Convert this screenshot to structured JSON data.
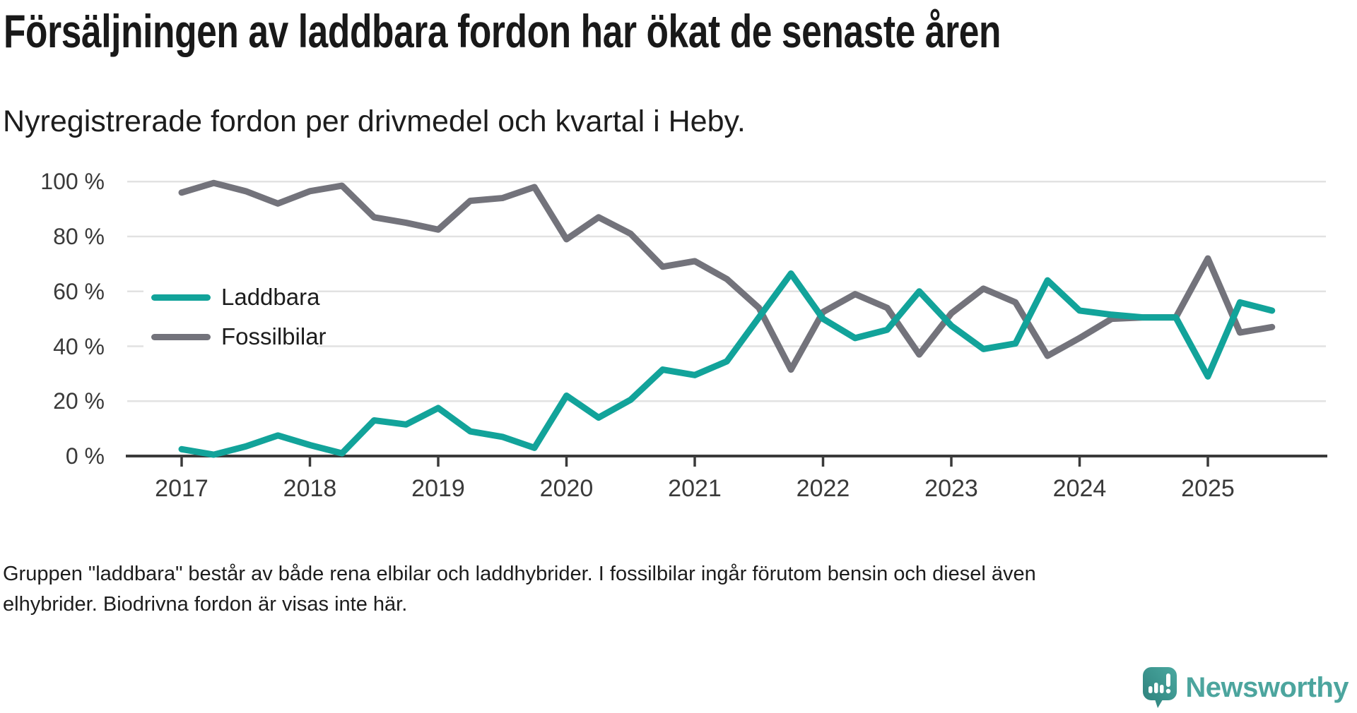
{
  "header": {
    "title": "Försäljningen av laddbara fordon har ökat de senaste åren",
    "subtitle": "Nyregistrerade fordon per drivmedel och kvartal i Heby."
  },
  "chart_data": {
    "type": "line",
    "title": "Försäljningen av laddbara fordon har ökat de senaste åren",
    "subtitle": "Nyregistrerade fordon per drivmedel och kvartal i Heby.",
    "xlabel": "",
    "ylabel": "",
    "ylim": [
      0,
      100
    ],
    "grid": "horizontal",
    "legend_position": "inside-upper-left",
    "x_tick_labels": [
      "2017",
      "2018",
      "2019",
      "2020",
      "2021",
      "2022",
      "2023",
      "2024",
      "2025"
    ],
    "y_tick_labels": [
      "100 %",
      "80 %",
      "60 %",
      "40 %",
      "20 %",
      "0 %"
    ],
    "y_tick_values": [
      100,
      80,
      60,
      40,
      20,
      0
    ],
    "x": [
      "2017 Q1",
      "2017 Q2",
      "2017 Q3",
      "2017 Q4",
      "2018 Q1",
      "2018 Q2",
      "2018 Q3",
      "2018 Q4",
      "2019 Q1",
      "2019 Q2",
      "2019 Q3",
      "2019 Q4",
      "2020 Q1",
      "2020 Q2",
      "2020 Q3",
      "2020 Q4",
      "2021 Q1",
      "2021 Q2",
      "2021 Q3",
      "2021 Q4",
      "2022 Q1",
      "2022 Q2",
      "2022 Q3",
      "2022 Q4",
      "2023 Q1",
      "2023 Q2",
      "2023 Q3",
      "2023 Q4",
      "2024 Q1",
      "2024 Q2",
      "2024 Q3",
      "2024 Q4",
      "2025 Q1",
      "2025 Q2",
      "2025 Q3"
    ],
    "series": [
      {
        "name": "Laddbara",
        "color": "#12A39A",
        "values": [
          2.5,
          0.5,
          3.5,
          7.5,
          4,
          1,
          13,
          11.5,
          17.5,
          9,
          7,
          3,
          22,
          14,
          20.5,
          31.5,
          29.5,
          34.5,
          50.5,
          66.5,
          50,
          43,
          46,
          60,
          47.5,
          39,
          41,
          64,
          53,
          51.5,
          50.5,
          50.5,
          29,
          56,
          53
        ]
      },
      {
        "name": "Fossilbilar",
        "color": "#73737B",
        "values": [
          96,
          99.5,
          96.5,
          92,
          96.5,
          98.5,
          87,
          85,
          82.5,
          93,
          94,
          98,
          79,
          87,
          81,
          69,
          71,
          64.5,
          54,
          31.5,
          52.5,
          59,
          54,
          37,
          52,
          61,
          56,
          36.5,
          43,
          50,
          50.5,
          50.5,
          72,
          45,
          47
        ]
      }
    ]
  },
  "footer": {
    "lines": [
      "Gruppen \"laddbara\" består av både rena elbilar och laddhybrider. I fossilbilar ingår förutom bensin och diesel även",
      "elhybrider. Biodrivna fordon är visas inte här."
    ]
  },
  "logo": {
    "text": "Newsworthy",
    "color": "#4CA59E",
    "icon_gradient": [
      "#4AA8A0",
      "#2D807B"
    ]
  },
  "colors": {
    "axis": "#3a3a3a",
    "gridline": "#e2e2e2",
    "text": "#1d1d1d"
  }
}
